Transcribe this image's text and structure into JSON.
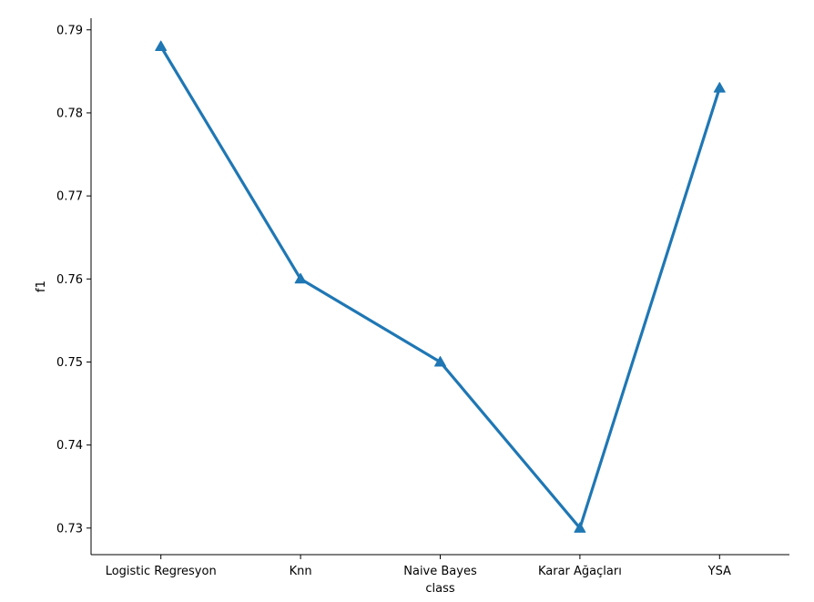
{
  "chart_data": {
    "type": "line",
    "categories": [
      "Logistic Regresyon",
      "Knn",
      "Naive Bayes",
      "Karar Ağaçları",
      "YSA"
    ],
    "series": [
      {
        "values": [
          0.788,
          0.76,
          0.75,
          0.73,
          0.783
        ],
        "color": "#1f77b4",
        "marker": "triangle-up"
      }
    ],
    "xlabel": "class",
    "ylabel": "f1",
    "ylim": [
      0.7268,
      0.7914
    ],
    "yticks": [
      0.73,
      0.74,
      0.75,
      0.76,
      0.77,
      0.78,
      0.79
    ],
    "ytick_labels": [
      "0.73",
      "0.74",
      "0.75",
      "0.76",
      "0.77",
      "0.78",
      "0.79"
    ],
    "grid": false,
    "spines": [
      "left",
      "bottom"
    ]
  }
}
